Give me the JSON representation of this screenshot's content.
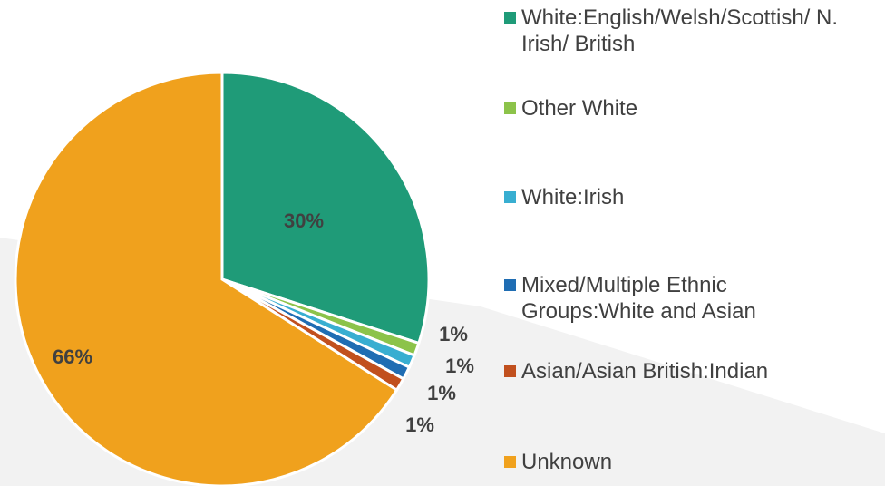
{
  "chart_data": {
    "type": "pie",
    "categories": [
      "White:English/Welsh/Scottish/ N. Irish/ British",
      "Other White",
      "White:Irish",
      "Mixed/Multiple Ethnic Groups:White and Asian",
      "Asian/Asian British:Indian",
      "Unknown"
    ],
    "values": [
      30,
      1,
      1,
      1,
      1,
      66
    ],
    "value_labels": [
      "30%",
      "1%",
      "1%",
      "1%",
      "1%",
      "66%"
    ],
    "colors": [
      "#1f9b78",
      "#8cc34a",
      "#38aed1",
      "#1f6db3",
      "#c1501e",
      "#f0a11d"
    ],
    "legend": "right"
  }
}
